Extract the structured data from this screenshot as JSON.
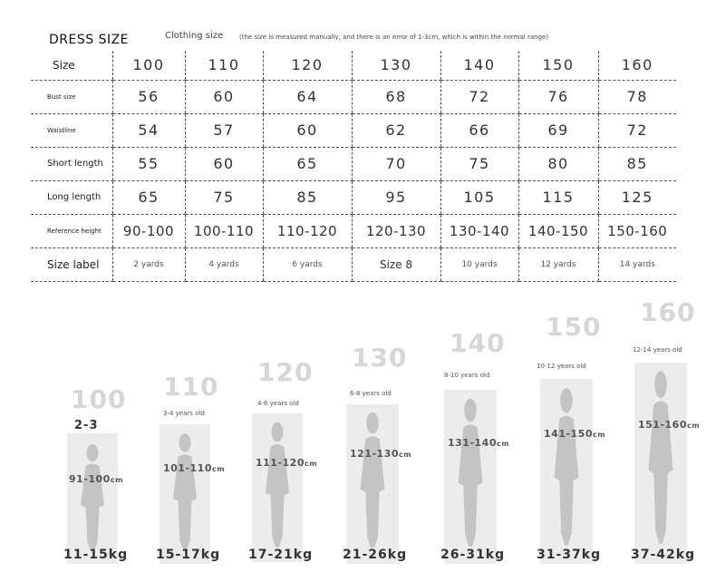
{
  "header": {
    "title": "DRESS  SIZE",
    "subtitle": "Clothing size",
    "note": "(the size is measured manually, and there is an error of 1-3cm, which is within the normal range)"
  },
  "table": {
    "rows": [
      {
        "label": "Size",
        "values": [
          "100",
          "110",
          "120",
          "130",
          "140",
          "150",
          "160"
        ]
      },
      {
        "label": "Bust size",
        "values": [
          "56",
          "60",
          "64",
          "68",
          "72",
          "76",
          "78"
        ]
      },
      {
        "label": "Waistline",
        "values": [
          "54",
          "57",
          "60",
          "62",
          "66",
          "69",
          "72"
        ]
      },
      {
        "label": "Short length",
        "values": [
          "55",
          "60",
          "65",
          "70",
          "75",
          "80",
          "85"
        ]
      },
      {
        "label": "Long length",
        "values": [
          "65",
          "75",
          "85",
          "95",
          "105",
          "115",
          "125"
        ]
      },
      {
        "label": "Reference height",
        "values": [
          "90-100",
          "100-110",
          "110-120",
          "120-130",
          "130-140",
          "140-150",
          "150-160"
        ]
      },
      {
        "label": "Size label",
        "values": [
          "2 yards",
          "4 yards",
          "6 yards",
          "Size 8",
          "10 yards",
          "12 yards",
          "14 yards"
        ]
      }
    ]
  },
  "figures": [
    {
      "size": "100",
      "age": "2-3",
      "height": "91-100",
      "unit": "cm",
      "weight": "11-15kg"
    },
    {
      "size": "110",
      "age": "3-4 years old",
      "height": "101-110",
      "unit": "cm",
      "weight": "15-17kg"
    },
    {
      "size": "120",
      "age": "4-6 years old",
      "height": "111-120",
      "unit": "cm",
      "weight": "17-21kg"
    },
    {
      "size": "130",
      "age": "6-8 years old",
      "height": "121-130",
      "unit": "cm",
      "weight": "21-26kg"
    },
    {
      "size": "140",
      "age": "8-10 years old",
      "height": "131-140",
      "unit": "cm",
      "weight": "26-31kg"
    },
    {
      "size": "150",
      "age": "10-12 years old",
      "height": "141-150",
      "unit": "cm",
      "weight": "31-37kg"
    },
    {
      "size": "160",
      "age": "12-14 years old",
      "height": "151-160",
      "unit": "cm",
      "weight": "37-42kg"
    }
  ],
  "colors": {
    "panel": "#ececec",
    "silhouette": "#c4c4c4",
    "faded_number": "#d6d6d6"
  }
}
